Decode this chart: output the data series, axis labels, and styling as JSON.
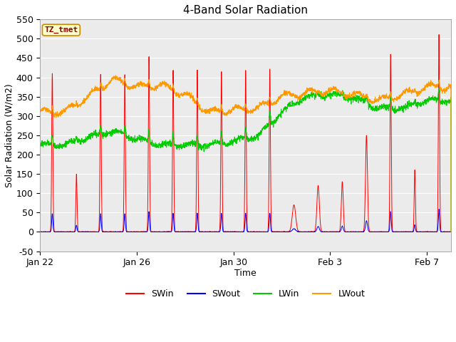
{
  "title": "4-Band Solar Radiation",
  "xlabel": "Time",
  "ylabel": "Solar Radiation (W/m2)",
  "ylim": [
    -50,
    550
  ],
  "xlim_days": [
    0,
    17
  ],
  "annotation_label": "TZ_tmet",
  "legend_entries": [
    "SWin",
    "SWout",
    "LWin",
    "LWout"
  ],
  "colors": {
    "SWin": "#ff0000",
    "SWout": "#0000ff",
    "LWin": "#00cc00",
    "LWout": "#ff9900"
  },
  "xtick_positions": [
    0,
    4,
    8,
    12,
    16
  ],
  "xtick_labels": [
    "Jan 22",
    "Jan 26",
    "Jan 30",
    "Feb 3",
    "Feb 7"
  ],
  "ytick_positions": [
    -50,
    0,
    50,
    100,
    150,
    200,
    250,
    300,
    350,
    400,
    450,
    500,
    550
  ],
  "fig_bg": "#ffffff",
  "plot_bg": "#ebebeb",
  "grid_color": "#ffffff",
  "title_fontsize": 11,
  "axis_label_fontsize": 9,
  "tick_fontsize": 9,
  "legend_fontsize": 9,
  "annotation_fontsize": 8,
  "annotation_color": "#8B0000",
  "annotation_bg": "#ffffcc",
  "annotation_edge": "#cc8800"
}
